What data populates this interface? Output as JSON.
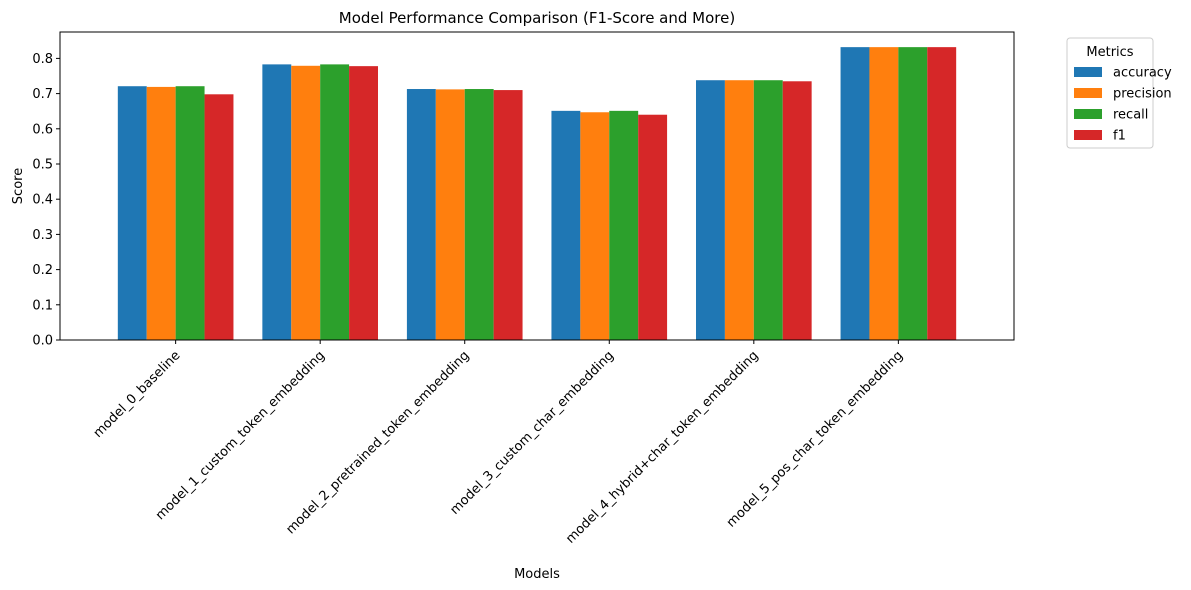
{
  "chart_data": {
    "type": "bar",
    "title": "Model Performance Comparison (F1-Score and More)",
    "xlabel": "Models",
    "ylabel": "Score",
    "ylim": [
      0,
      0.875
    ],
    "yticks": [
      0.0,
      0.1,
      0.2,
      0.3,
      0.4,
      0.5,
      0.6,
      0.7,
      0.8
    ],
    "ytick_labels": [
      "0.0",
      "0.1",
      "0.2",
      "0.3",
      "0.4",
      "0.5",
      "0.6",
      "0.7",
      "0.8"
    ],
    "categories": [
      "model_0_baseline",
      "model_1_custom_token_embedding",
      "model_2_pretrained_token_embedding",
      "model_3_custom_char_embedding",
      "model_4_hybrid+char_token_embedding",
      "model_5_pos_char_token_embedding"
    ],
    "legend_title": "Metrics",
    "legend_position": "outside upper right",
    "grid": false,
    "series": [
      {
        "name": "accuracy",
        "color": "#1f77b4",
        "values": [
          0.721,
          0.783,
          0.713,
          0.651,
          0.738,
          0.832
        ]
      },
      {
        "name": "precision",
        "color": "#ff7f0e",
        "values": [
          0.719,
          0.779,
          0.712,
          0.647,
          0.738,
          0.832
        ]
      },
      {
        "name": "recall",
        "color": "#2ca02c",
        "values": [
          0.721,
          0.783,
          0.713,
          0.651,
          0.738,
          0.832
        ]
      },
      {
        "name": "f1",
        "color": "#d62728",
        "values": [
          0.698,
          0.778,
          0.71,
          0.64,
          0.735,
          0.832
        ]
      }
    ]
  }
}
